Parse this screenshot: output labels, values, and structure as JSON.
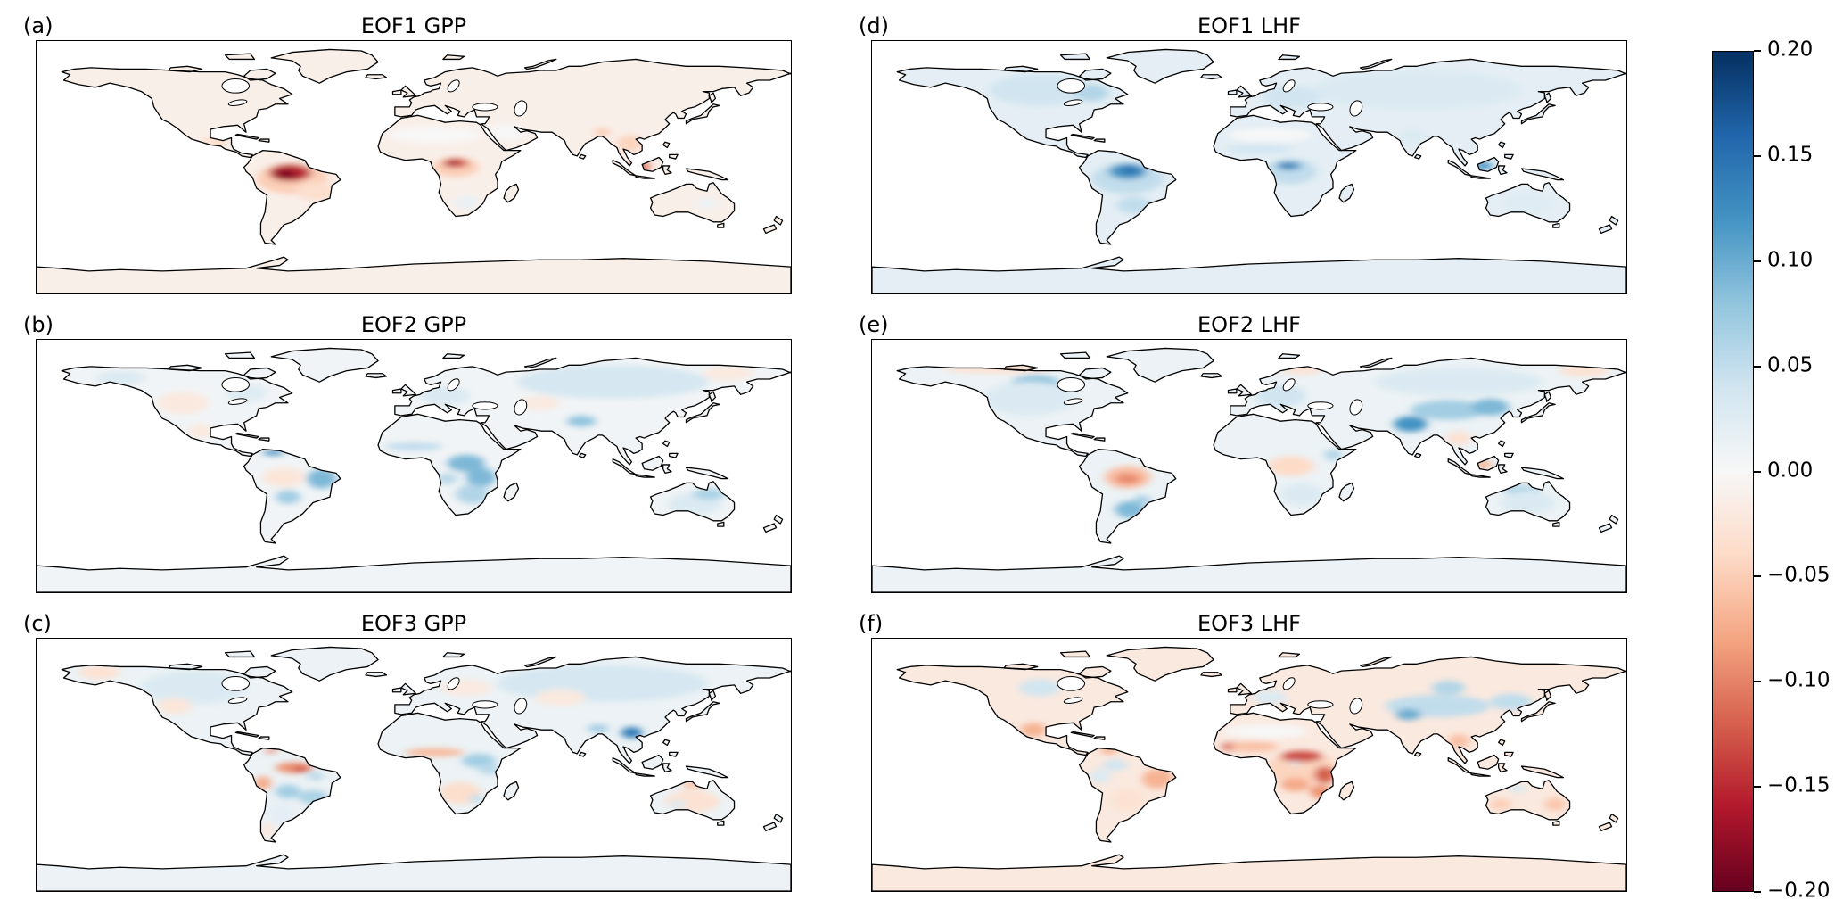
{
  "chart_data": {
    "type": "heatmap",
    "subtype": "global_contour_map_grid",
    "projection": "equirectangular",
    "grid": {
      "rows": 3,
      "cols": 2
    },
    "value_range": [
      -0.2,
      0.2
    ],
    "region_format": [
      "name",
      "lon",
      "lat",
      "rx_deg",
      "ry_deg",
      "value"
    ],
    "panels": [
      {
        "id": "a",
        "label": "(a)",
        "title": "EOF1 GPP",
        "variable": "GPP",
        "mode": "EOF1",
        "base_value": -0.012,
        "regions": [
          [
            "sahara-neutral",
            10,
            23,
            22,
            6,
            0
          ],
          [
            "arabia-neutral",
            45,
            25,
            9,
            6,
            0
          ],
          [
            "amazon-halo",
            -58,
            -8,
            17,
            11,
            -0.05
          ],
          [
            "amazon-core",
            -59,
            -4,
            10,
            6,
            -0.15
          ],
          [
            "amazon-inner",
            -61,
            -5,
            5,
            3,
            -0.19
          ],
          [
            "se-brazil-fade",
            -47,
            -17,
            9,
            7,
            -0.035
          ],
          [
            "congo-halo",
            20,
            0,
            11,
            7,
            -0.05
          ],
          [
            "congo-core",
            20,
            3,
            6,
            3.2,
            -0.13
          ],
          [
            "congo-inner",
            18.5,
            3,
            3,
            1.7,
            -0.17
          ],
          [
            "ne-india-spot",
            90,
            25,
            4,
            3,
            -0.05
          ],
          [
            "indochina",
            103,
            17,
            6,
            6,
            -0.045
          ],
          [
            "borneo-malaysia",
            108,
            0.5,
            5,
            3.5,
            -0.11
          ],
          [
            "central-america",
            -95,
            18,
            6,
            4,
            -0.035
          ],
          [
            "s-africa-interior",
            25,
            -25,
            6,
            5,
            0.015
          ],
          [
            "australia-east",
            140,
            -26,
            5,
            4,
            0.012
          ]
        ]
      },
      {
        "id": "b",
        "label": "(b)",
        "title": "EOF2 GPP",
        "variable": "GPP",
        "mode": "EOF2",
        "base_value": 0.006,
        "regions": [
          [
            "ne-brazil-core",
            -42,
            -9,
            3.5,
            4.5,
            0.17
          ],
          [
            "ne-brazil-halo",
            -44,
            -9,
            7,
            7,
            0.09
          ],
          [
            "venezuela-coast",
            -67,
            9.5,
            5,
            1.8,
            0.13
          ],
          [
            "w-amazon-pink",
            -62,
            -8,
            10,
            7,
            -0.025
          ],
          [
            "chaco-blue",
            -60,
            -22,
            6,
            5,
            0.07
          ],
          [
            "sahel-blue",
            0,
            14,
            14,
            3,
            0.05
          ],
          [
            "c-africa-arc",
            25,
            2,
            9,
            6,
            0.09
          ],
          [
            "e-africa-blue",
            32,
            -8,
            7,
            7,
            0.09
          ],
          [
            "se-africa-blue",
            28,
            -20,
            8,
            7,
            0.06
          ],
          [
            "angola-blue",
            16,
            -9,
            5,
            4,
            0.055
          ],
          [
            "europe-light",
            15,
            50,
            12,
            7,
            0.03
          ],
          [
            "siberia-light",
            95,
            60,
            46,
            12,
            0.035
          ],
          [
            "himalaya-blue",
            80,
            32,
            7,
            4,
            0.08
          ],
          [
            "ne-siberia-pink",
            150,
            66,
            12,
            5,
            -0.02
          ],
          [
            "c-asia-pink",
            60,
            45,
            10,
            5,
            -0.02
          ],
          [
            "australia-light",
            134,
            -27,
            13,
            8,
            0.03
          ],
          [
            "ne-australia-arc",
            141,
            -20,
            8,
            4,
            0.065
          ],
          [
            "w-north-america-pink",
            -110,
            45,
            12,
            8,
            -0.02
          ],
          [
            "nw-canada-blue",
            -140,
            63,
            12,
            5,
            0.03
          ],
          [
            "e-canada-light",
            -80,
            52,
            10,
            7,
            0.025
          ],
          [
            "mexico-pink",
            -102,
            25,
            6,
            5,
            -0.02
          ]
        ]
      },
      {
        "id": "c",
        "label": "(c)",
        "title": "EOF3 GPP",
        "variable": "GPP",
        "mode": "EOF3",
        "base_value": 0.012,
        "regions": [
          [
            "n-amazon-red",
            -57,
            -2,
            9,
            4,
            -0.09
          ],
          [
            "n-amazon-core",
            -54,
            -3,
            4,
            2,
            -0.13
          ],
          [
            "peru-orange",
            -72,
            -13,
            4,
            5,
            -0.075
          ],
          [
            "bolivia-blue-core",
            -62,
            -18,
            3,
            2.2,
            0.14
          ],
          [
            "bolivia-blue",
            -60,
            -19,
            6,
            5,
            0.07
          ],
          [
            "se-brazil-blue",
            -48,
            -23,
            7,
            5,
            0.065
          ],
          [
            "e-brazil-blue",
            -47,
            -8,
            4,
            3,
            0.055
          ],
          [
            "venezuela-red",
            -68,
            10,
            3,
            1.5,
            -0.1
          ],
          [
            "argentina-light",
            -63,
            -35,
            6,
            8,
            0.02
          ],
          [
            "patagonia-pink",
            -70,
            -47,
            4,
            6,
            -0.02
          ],
          [
            "sahel-orange",
            10,
            9,
            14,
            3,
            -0.065
          ],
          [
            "c-africa-blue-core",
            27,
            3,
            4,
            2.8,
            0.15
          ],
          [
            "c-africa-blue",
            31,
            3,
            8,
            5,
            0.07
          ],
          [
            "e-africa-blue",
            36,
            -3,
            5,
            4,
            0.055
          ],
          [
            "s-africa-pink",
            22,
            -20,
            10,
            8,
            -0.035
          ],
          [
            "s-africa-blue-spot",
            30,
            -24,
            3,
            3,
            0.05
          ],
          [
            "siberia-light",
            90,
            58,
            50,
            13,
            0.035
          ],
          [
            "europe-pink",
            25,
            55,
            12,
            6,
            -0.018
          ],
          [
            "s-china-blue",
            104,
            23,
            5,
            4,
            0.14
          ],
          [
            "ne-india-blue",
            88,
            26,
            5,
            3,
            0.07
          ],
          [
            "c-asia-pink",
            70,
            48,
            12,
            6,
            -0.02
          ],
          [
            "n-america-light",
            -105,
            55,
            25,
            12,
            0.03
          ],
          [
            "alaska-pink",
            -150,
            66,
            10,
            5,
            -0.03
          ],
          [
            "w-us-pink",
            -114,
            42,
            8,
            6,
            -0.025
          ],
          [
            "australia-pink",
            133,
            -26,
            13,
            8,
            -0.03
          ],
          [
            "n-australia-orange",
            133,
            -14,
            5,
            3,
            -0.055
          ],
          [
            "c-australia-blue",
            126,
            -28,
            4,
            3,
            0.03
          ]
        ]
      },
      {
        "id": "d",
        "label": "(d)",
        "title": "EOF1 LHF",
        "variable": "LHF",
        "mode": "EOF1",
        "base_value": 0.02,
        "regions": [
          [
            "sahara-neutral",
            10,
            23,
            20,
            5,
            0
          ],
          [
            "amazon-halo",
            -58,
            -8,
            17,
            11,
            0.05
          ],
          [
            "amazon-core",
            -58,
            -3,
            9,
            5.5,
            0.12
          ],
          [
            "amazon-inner",
            -57,
            -2,
            4,
            2.2,
            0.16
          ],
          [
            "congo-halo",
            20,
            -3,
            12,
            9,
            0.05
          ],
          [
            "congo-core",
            19,
            1,
            6,
            3,
            0.12
          ],
          [
            "congo-inner",
            18,
            1,
            3,
            1.5,
            0.15
          ],
          [
            "sahel-band",
            5,
            13,
            16,
            3,
            0.04
          ],
          [
            "canada-blue",
            -100,
            55,
            24,
            11,
            0.04
          ],
          [
            "ne-canada-blue",
            -75,
            53,
            8,
            6,
            0.06
          ],
          [
            "eurasia-light",
            80,
            55,
            50,
            14,
            0.03
          ],
          [
            "europe-blue",
            20,
            50,
            14,
            8,
            0.04
          ],
          [
            "borneo-blue",
            112,
            1,
            4,
            3,
            0.12
          ],
          [
            "se-south-america",
            -55,
            -27,
            8,
            6,
            0.05
          ],
          [
            "india-light",
            78,
            22,
            6,
            5,
            0.03
          ],
          [
            "australia-light",
            133,
            -26,
            12,
            8,
            0.025
          ]
        ]
      },
      {
        "id": "e",
        "label": "(e)",
        "title": "EOF2 LHF",
        "variable": "LHF",
        "mode": "EOF2",
        "base_value": 0.012,
        "regions": [
          [
            "amazon-orange",
            -58,
            -8,
            11,
            8,
            -0.06
          ],
          [
            "amazon-inner",
            -58,
            -9,
            6,
            4,
            -0.095
          ],
          [
            "se-south-america-blue",
            -57,
            -31,
            7,
            6,
            0.09
          ],
          [
            "s-brazil-blue",
            -51,
            -24,
            4,
            3,
            0.07
          ],
          [
            "canada-blue",
            -102,
            58,
            12,
            7,
            0.08
          ],
          [
            "n-america-light",
            -105,
            48,
            22,
            12,
            0.03
          ],
          [
            "arctic-coast-pink",
            -120,
            70,
            26,
            4,
            -0.03
          ],
          [
            "congo-orange",
            20,
            2,
            6.5,
            3.5,
            -0.085
          ],
          [
            "congo-halo",
            20,
            0,
            11,
            7,
            -0.04
          ],
          [
            "s-africa-blue",
            25,
            -20,
            10,
            8,
            0.03
          ],
          [
            "e-africa-blue",
            40,
            8,
            4,
            4,
            0.06
          ],
          [
            "europe-blue",
            15,
            50,
            12,
            8,
            0.04
          ],
          [
            "n-scandinavia-pink",
            25,
            69,
            10,
            3.5,
            -0.03
          ],
          [
            "himalaya-india-blue",
            77,
            30,
            8,
            5.5,
            0.12
          ],
          [
            "c-asia-band",
            95,
            40,
            18,
            7,
            0.07
          ],
          [
            "ne-china-blue",
            115,
            42,
            9,
            6,
            0.09
          ],
          [
            "siberia-light",
            100,
            60,
            40,
            10,
            0.03
          ],
          [
            "indochina-pink",
            100,
            20,
            6,
            5,
            -0.03
          ],
          [
            "borneo-orange",
            112,
            1,
            4,
            3,
            -0.07
          ],
          [
            "n-australia-blue",
            130,
            -17,
            9,
            3.5,
            0.06
          ],
          [
            "australia-light",
            133,
            -26,
            13,
            8,
            0.03
          ],
          [
            "ne-siberia-pink",
            160,
            68,
            12,
            4,
            -0.03
          ]
        ]
      },
      {
        "id": "f",
        "label": "(f)",
        "title": "EOF3 LHF",
        "variable": "LHF",
        "mode": "EOF3",
        "base_value": -0.02,
        "regions": [
          [
            "sahara-neutral",
            8,
            24,
            20,
            5,
            0
          ],
          [
            "africa-halo",
            25,
            -2,
            16,
            12,
            -0.045
          ],
          [
            "w-africa-red",
            -8,
            13,
            5,
            3,
            -0.13
          ],
          [
            "sahel-orange",
            2,
            13,
            12,
            3.5,
            -0.06
          ],
          [
            "ce-africa-red-band",
            25,
            6,
            10,
            4,
            -0.13
          ],
          [
            "e-africa-red",
            36,
            -7,
            5,
            6,
            -0.12
          ],
          [
            "angola-orange",
            22,
            -14,
            7,
            5,
            -0.075
          ],
          [
            "mozambique-red",
            34,
            -19,
            5,
            5,
            -0.09
          ],
          [
            "c-africa-blue-spot",
            22,
            1,
            3,
            1.5,
            0.03
          ],
          [
            "ne-brazil-red",
            -41,
            -9,
            4,
            5,
            -0.15
          ],
          [
            "ne-brazil-halo",
            -44,
            -10,
            7,
            7,
            -0.07
          ],
          [
            "n-amazon-blue",
            -64,
            0,
            6,
            4,
            0.04
          ],
          [
            "w-amazon-blue",
            -71,
            -8,
            5,
            5,
            0.03
          ],
          [
            "s-america-center-pink",
            -58,
            -25,
            8,
            8,
            -0.03
          ],
          [
            "venezuela-orange",
            -67,
            10,
            4,
            2,
            -0.08
          ],
          [
            "mexico-orange",
            -103,
            25,
            6,
            5,
            -0.07
          ],
          [
            "canada-blue-patch",
            -100,
            55,
            10,
            6,
            0.04
          ],
          [
            "c-asia-blue-band",
            90,
            42,
            25,
            8,
            0.05
          ],
          [
            "c-asia-blue-core",
            76,
            36,
            6,
            4,
            0.1
          ],
          [
            "ne-asia-blue",
            125,
            45,
            10,
            6,
            0.05
          ],
          [
            "siberia-blue-spot",
            95,
            55,
            8,
            5,
            0.06
          ],
          [
            "indochina-orange",
            100,
            17,
            5,
            5,
            -0.06
          ],
          [
            "e-australia-orange",
            146,
            -28,
            5,
            5,
            -0.055
          ],
          [
            "w-australia-orange",
            120,
            -28,
            5,
            4,
            -0.05
          ],
          [
            "nw-australia-blue",
            128,
            -17,
            4,
            3,
            0.03
          ],
          [
            "europe-blue-patch",
            10,
            48,
            8,
            5,
            0.03
          ]
        ]
      }
    ],
    "colorbar": {
      "orientation": "vertical",
      "min": -0.2,
      "max": 0.2,
      "colormap": "RdBu",
      "colormap_stops": [
        "#67001f",
        "#b2182b",
        "#d6604d",
        "#f4a582",
        "#fddbc7",
        "#f7f7f7",
        "#d1e5f0",
        "#92c5de",
        "#4393c3",
        "#2166ac",
        "#053061"
      ],
      "ticks": [
        {
          "label": "0.20",
          "value": 0.2
        },
        {
          "label": "0.15",
          "value": 0.15
        },
        {
          "label": "0.10",
          "value": 0.1
        },
        {
          "label": "0.05",
          "value": 0.05
        },
        {
          "label": "0.00",
          "value": 0.0
        },
        {
          "label": "−0.05",
          "value": -0.05
        },
        {
          "label": "−0.10",
          "value": -0.1
        },
        {
          "label": "−0.15",
          "value": -0.15
        },
        {
          "label": "−0.20",
          "value": -0.2
        }
      ]
    }
  }
}
